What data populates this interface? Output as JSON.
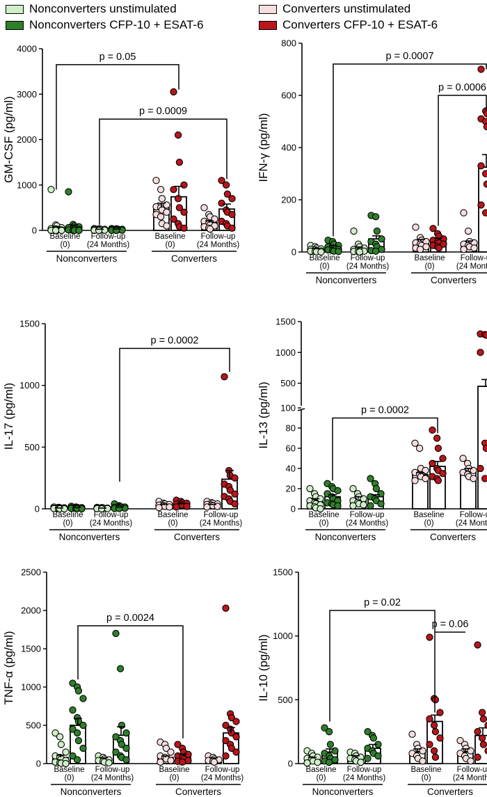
{
  "legend": {
    "nonconv_unstim": "Nonconverters unstimulated",
    "nonconv_stim": "Nonconverters CFP-10 + ESAT-6",
    "conv_unstim": "Converters unstimulated",
    "conv_stim": "Converters CFP-10 + ESAT-6"
  },
  "colors": {
    "nonconv_unstim": "#cfeec8",
    "nonconv_stim": "#2f7f2b",
    "conv_unstim": "#f6dede",
    "conv_stim": "#b8161b"
  },
  "axis_text": {
    "baseline": [
      "Baseline",
      "(0)"
    ],
    "followup": [
      "Follow-up",
      "(24 Months)"
    ],
    "group_nonconverters": "Nonconverters",
    "group_converters": "Converters"
  },
  "chart_data": [
    {
      "type": "bar",
      "ylabel": "GM-CSF (pg/ml)",
      "ylim": [
        0,
        4000
      ],
      "yticks": [
        0,
        1000,
        2000,
        3000,
        4000
      ],
      "means": [
        60,
        90,
        20,
        25,
        500,
        740,
        170,
        470
      ],
      "sems": [
        20,
        30,
        5,
        5,
        100,
        230,
        40,
        110
      ],
      "points": [
        [
          900,
          120,
          100,
          60,
          40,
          30,
          20,
          10,
          0,
          0,
          0,
          0,
          0,
          0
        ],
        [
          850,
          130,
          100,
          80,
          60,
          40,
          30,
          20,
          10,
          0,
          0,
          0
        ],
        [
          40,
          35,
          30,
          25,
          20,
          15,
          10,
          5,
          0,
          0
        ],
        [
          40,
          35,
          30,
          25,
          20,
          15,
          10,
          5,
          0,
          0
        ],
        [
          1100,
          900,
          700,
          560,
          520,
          500,
          450,
          400,
          350,
          300,
          150,
          100
        ],
        [
          3050,
          2100,
          1500,
          1000,
          900,
          700,
          500,
          400,
          250,
          150,
          80,
          50
        ],
        [
          500,
          350,
          300,
          250,
          200,
          150,
          120,
          100,
          80,
          50,
          30
        ],
        [
          1100,
          1000,
          800,
          700,
          600,
          450,
          400,
          350,
          200,
          150,
          100,
          50
        ]
      ],
      "brackets": [
        {
          "label": "p = 0.05",
          "from": 0,
          "to": 5,
          "y": 3650,
          "left_end": 900,
          "right_end": 3100
        },
        {
          "label": "p = 0.0009",
          "from": 2,
          "to": 7,
          "y": 2450,
          "left_end": 120,
          "right_end": 1130
        }
      ]
    },
    {
      "type": "bar",
      "ylabel": "IFN-γ (pg/ml)",
      "ylim": [
        0,
        800
      ],
      "yticks": [
        0,
        200,
        400,
        600,
        800
      ],
      "means": [
        10,
        20,
        15,
        50,
        40,
        45,
        35,
        325
      ],
      "sems": [
        3,
        5,
        4,
        12,
        8,
        8,
        7,
        48
      ],
      "points": [
        [
          25,
          20,
          15,
          12,
          10,
          8,
          5,
          4,
          3,
          2,
          1,
          0
        ],
        [
          45,
          40,
          30,
          25,
          20,
          15,
          12,
          10,
          8,
          5,
          3,
          2
        ],
        [
          80,
          30,
          20,
          15,
          10,
          8,
          5,
          3,
          2,
          1,
          0
        ],
        [
          140,
          135,
          80,
          50,
          40,
          30,
          20,
          10,
          5,
          3
        ],
        [
          95,
          55,
          45,
          40,
          35,
          30,
          25,
          20,
          15,
          10
        ],
        [
          90,
          70,
          60,
          50,
          45,
          40,
          35,
          30,
          25,
          20,
          15
        ],
        [
          150,
          80,
          40,
          35,
          30,
          25,
          20,
          15,
          10
        ],
        [
          700,
          540,
          530,
          520,
          510,
          500,
          480,
          380,
          330,
          300,
          260,
          220,
          180,
          150
        ]
      ],
      "brackets": [
        {
          "label": "p = 0.0007",
          "from": 1,
          "to": 7,
          "y": 720,
          "left_end": 60,
          "right_end": 700
        },
        {
          "label": "p = 0.0006",
          "from": 5,
          "to": 7,
          "y": 600,
          "left_end": 100,
          "right_end": 540
        }
      ]
    },
    {
      "type": "bar",
      "ylabel": "IL-17 (pg/ml)",
      "ylim": [
        0,
        1500
      ],
      "yticks": [
        0,
        500,
        1000,
        1500
      ],
      "means": [
        5,
        8,
        4,
        10,
        30,
        35,
        30,
        240
      ],
      "sems": [
        2,
        3,
        2,
        4,
        6,
        7,
        6,
        70
      ],
      "points": [
        [
          15,
          12,
          10,
          8,
          6,
          5,
          4,
          3,
          2,
          1,
          0,
          0
        ],
        [
          20,
          15,
          12,
          10,
          8,
          6,
          5,
          4,
          3,
          2,
          1,
          0
        ],
        [
          12,
          10,
          8,
          6,
          5,
          4,
          3,
          2,
          1,
          0
        ],
        [
          40,
          25,
          20,
          15,
          12,
          10,
          8,
          5,
          3,
          2
        ],
        [
          60,
          45,
          40,
          35,
          30,
          25,
          20,
          15,
          10
        ],
        [
          70,
          60,
          50,
          45,
          40,
          35,
          30,
          20,
          15
        ],
        [
          60,
          50,
          45,
          40,
          35,
          30,
          25,
          20,
          15
        ],
        [
          1070,
          310,
          270,
          250,
          200,
          180,
          150,
          120,
          100,
          80,
          60,
          40
        ]
      ],
      "brackets": [
        {
          "label": "p = 0.0002",
          "from": 3,
          "to": 7,
          "y": 1300,
          "left_end": 220,
          "right_end": 1110
        }
      ]
    },
    {
      "type": "bar",
      "ylabel": "IL-13 (pg/ml)",
      "yscale": "broken",
      "ylim": [
        0,
        1500
      ],
      "yticks": [
        0,
        20,
        40,
        60,
        80,
        100,
        500,
        1000,
        1500
      ],
      "means": [
        8,
        12,
        10,
        12,
        34,
        42,
        37,
        450
      ],
      "sems": [
        2,
        2,
        2,
        2,
        2,
        5,
        3,
        110
      ],
      "points": [
        [
          20,
          15,
          12,
          10,
          8,
          6,
          5,
          4,
          3,
          2,
          1,
          0
        ],
        [
          25,
          22,
          20,
          18,
          15,
          12,
          10,
          8,
          6,
          5,
          4,
          3
        ],
        [
          20,
          15,
          12,
          10,
          8,
          6,
          5,
          4,
          3
        ],
        [
          30,
          25,
          20,
          15,
          12,
          10,
          8,
          5,
          3
        ],
        [
          65,
          60,
          40,
          38,
          36,
          34,
          32,
          30,
          28
        ],
        [
          78,
          70,
          60,
          50,
          45,
          40,
          38,
          35,
          32,
          30,
          28
        ],
        [
          50,
          45,
          40,
          38,
          36,
          34,
          32,
          30
        ],
        [
          1300,
          1290,
          1280,
          1270,
          1000,
          65,
          60,
          50,
          40,
          30
        ]
      ],
      "brackets": [
        {
          "label": "p = 0.0002",
          "from": 1,
          "to": 5,
          "y": 90,
          "left_end": 28,
          "right_end": 75
        }
      ]
    },
    {
      "type": "bar",
      "ylabel": "TNF-α (pg/ml)",
      "ylim": [
        0,
        2500
      ],
      "yticks": [
        0,
        500,
        1000,
        1500,
        2000,
        2500
      ],
      "means": [
        80,
        500,
        60,
        370,
        80,
        100,
        60,
        400
      ],
      "sems": [
        30,
        90,
        15,
        110,
        20,
        25,
        15,
        70
      ],
      "points": [
        [
          400,
          350,
          250,
          150,
          100,
          80,
          60,
          40,
          20,
          10,
          5,
          0
        ],
        [
          1050,
          1000,
          950,
          850,
          700,
          600,
          550,
          500,
          450,
          400,
          300,
          200,
          100,
          50
        ],
        [
          100,
          80,
          60,
          50,
          40,
          30,
          20,
          10
        ],
        [
          1700,
          1240,
          500,
          400,
          350,
          300,
          250,
          200,
          150,
          100,
          80,
          50
        ],
        [
          280,
          250,
          200,
          150,
          100,
          80,
          60,
          40,
          20
        ],
        [
          250,
          200,
          150,
          120,
          100,
          80,
          60,
          40,
          30,
          20
        ],
        [
          100,
          80,
          60,
          50,
          40,
          30,
          20
        ],
        [
          2030,
          650,
          600,
          550,
          500,
          450,
          400,
          350,
          300,
          250,
          200,
          150,
          100
        ]
      ],
      "brackets": [
        {
          "label": "p = 0.0024",
          "from": 1,
          "to": 5,
          "y": 1800,
          "left_end": 1100,
          "right_end": 330
        }
      ]
    },
    {
      "type": "bar",
      "ylabel": "IL-10 (pg/ml)",
      "ylim": [
        0,
        1500
      ],
      "yticks": [
        0,
        500,
        1000,
        1500
      ],
      "means": [
        40,
        90,
        50,
        120,
        90,
        330,
        90,
        220
      ],
      "sems": [
        10,
        25,
        12,
        30,
        25,
        50,
        25,
        60
      ],
      "points": [
        [
          100,
          80,
          60,
          50,
          40,
          30,
          20,
          10,
          5
        ],
        [
          280,
          250,
          150,
          100,
          80,
          60,
          40,
          30,
          20,
          10
        ],
        [
          90,
          80,
          60,
          50,
          40,
          30,
          20,
          10
        ],
        [
          250,
          220,
          200,
          150,
          120,
          100,
          80,
          60,
          40
        ],
        [
          230,
          150,
          120,
          100,
          80,
          60,
          40,
          20
        ],
        [
          990,
          510,
          500,
          400,
          350,
          300,
          250,
          200,
          150,
          100,
          50
        ],
        [
          180,
          150,
          120,
          100,
          80,
          60,
          40,
          20
        ],
        [
          930,
          400,
          350,
          300,
          250,
          200,
          150,
          100,
          50
        ]
      ],
      "brackets": [
        {
          "label": "p = 0.02",
          "from": 1,
          "to": 5,
          "y": 1200,
          "left_end": 330,
          "right_end": 1030
        },
        {
          "label": "p = 0.06",
          "from": 5,
          "to": 6,
          "y": 1030,
          "left_end": 400,
          "right_end": 1030
        }
      ]
    }
  ]
}
